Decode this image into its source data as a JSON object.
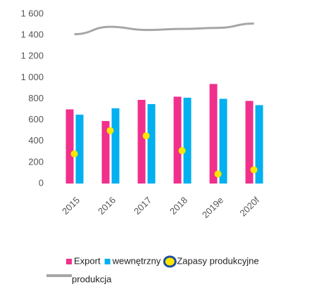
{
  "chart_data": {
    "type": "bar",
    "categories": [
      "2015",
      "2016",
      "2017",
      "2018",
      "2019e",
      "2020f"
    ],
    "series": [
      {
        "name": "Export",
        "color": "#f0308c",
        "values": [
          700,
          590,
          790,
          820,
          940,
          780
        ]
      },
      {
        "name": "wewnętrzny",
        "color": "#00b0f0",
        "values": [
          650,
          710,
          750,
          810,
          800,
          740
        ]
      },
      {
        "name": "Zapasy produkcyjne",
        "type": "scatter",
        "color": "#ffe600",
        "values": [
          280,
          500,
          450,
          310,
          90,
          130
        ]
      },
      {
        "name": "produkcja",
        "type": "line",
        "color": "#a6a6a6",
        "values": [
          1410,
          1480,
          1450,
          1460,
          1470,
          1510
        ]
      }
    ],
    "ylim": [
      0,
      1600
    ],
    "yticks": [
      0,
      200,
      400,
      600,
      800,
      {
        "value": 1000,
        "label": "1 000"
      },
      {
        "value": 1200,
        "label": "1 200"
      },
      {
        "value": 1400,
        "label": "1 400"
      },
      {
        "value": 1600,
        "label": "1 600"
      }
    ],
    "grid": false
  }
}
